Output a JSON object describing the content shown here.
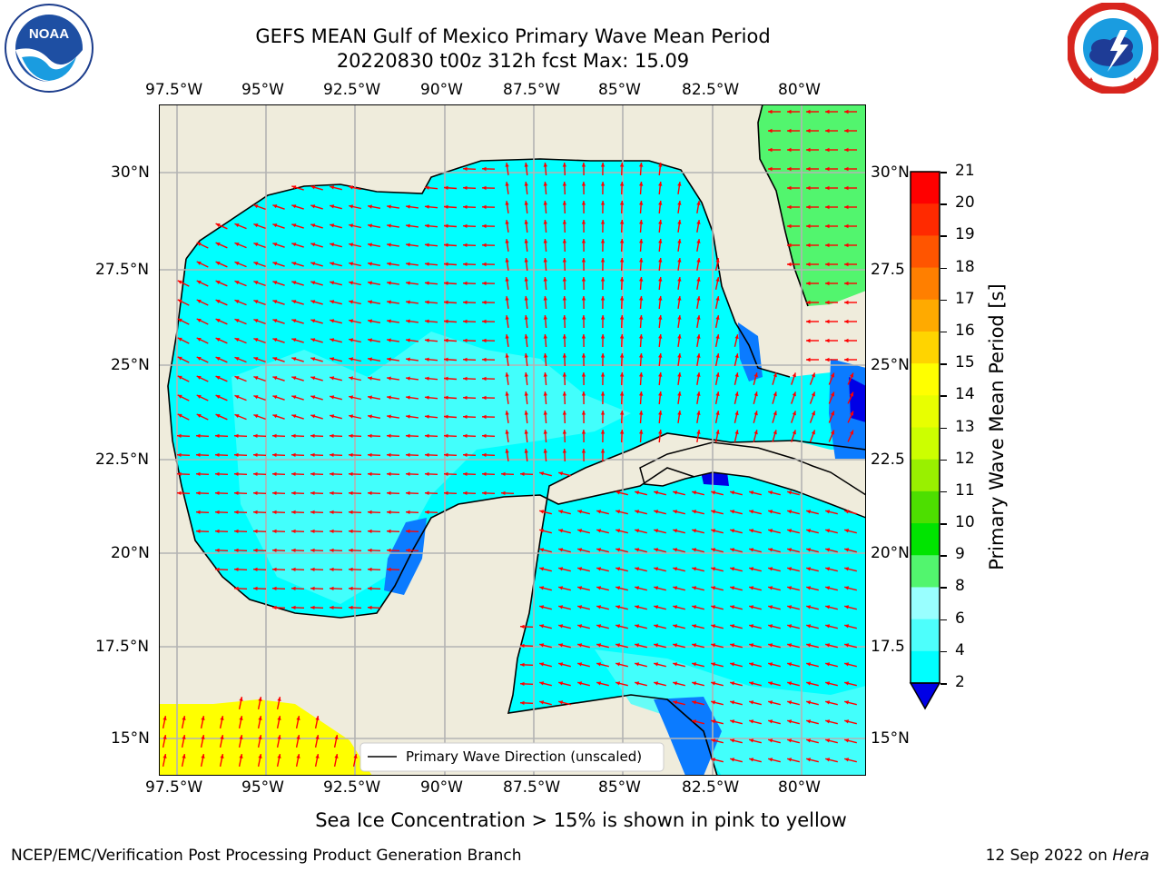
{
  "header": {
    "title_line1": "GEFS MEAN Gulf of Mexico Primary Wave Mean Period",
    "title_line2": "20220830 t00z 312h fcst   Max: 15.09"
  },
  "logos": {
    "left": {
      "name": "NOAA",
      "ring_text": "NATIONAL OCEANIC AND ATMOSPHERIC ADMINISTRATION · U.S. DEPARTMENT OF COMMERCE"
    },
    "right": {
      "name": "NATIONAL WEATHER SERVICE"
    }
  },
  "map": {
    "lon_ticks": [
      "97.5°W",
      "95°W",
      "92.5°W",
      "90°W",
      "87.5°W",
      "85°W",
      "82.5°W",
      "80°W"
    ],
    "lat_ticks": [
      "30°N",
      "27.5°N",
      "25°N",
      "22.5°N",
      "20°N",
      "17.5°N",
      "15°N"
    ],
    "right_lat_ticks": [
      "30°N",
      "27.5",
      "25°N",
      "22.5",
      "20°N",
      "17.5",
      "15°N"
    ],
    "legend_label": "Primary Wave Direction (unscaled)",
    "colors": {
      "land": "#efecdc",
      "ocean_4_6": "#00ffff",
      "ocean_6_8": "#4dfffc",
      "ocean_2_4": "#0b7bff",
      "ocean_0_2": "#0000e6",
      "period_9_10": "#52f56e",
      "ice_yellow": "#ffff00",
      "arrow": "#ff0000",
      "grid": "#b3b3b3"
    }
  },
  "colorbar": {
    "title": "Primary Wave Mean Period [s]",
    "labels": [
      "21",
      "20",
      "19",
      "18",
      "17",
      "16",
      "15",
      "14",
      "13",
      "12",
      "11",
      "10",
      "9",
      "8",
      "6",
      "4",
      "2"
    ],
    "colors": [
      "#ff0000",
      "#ff2a00",
      "#ff5500",
      "#ff7f00",
      "#ffaa00",
      "#ffd400",
      "#ffff00",
      "#e8ff00",
      "#ccff00",
      "#99f000",
      "#4ddf00",
      "#00e400",
      "#52f56e",
      "#99ffff",
      "#4dfffc",
      "#00ffff",
      "#0b7bff"
    ],
    "underflow_color": "#0000e6"
  },
  "sub_note": "Sea Ice Concentration > 15% is shown in pink to yellow",
  "footer": {
    "left": "NCEP/EMC/Verification Post Processing Product Generation Branch",
    "right_prefix": "12 Sep 2022 on ",
    "right_host": "Hera"
  }
}
